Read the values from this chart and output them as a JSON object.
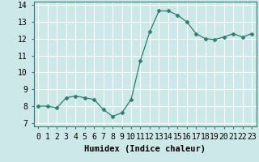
{
  "x": [
    0,
    1,
    2,
    3,
    4,
    5,
    6,
    7,
    8,
    9,
    10,
    11,
    12,
    13,
    14,
    15,
    16,
    17,
    18,
    19,
    20,
    21,
    22,
    23
  ],
  "y": [
    8.0,
    8.0,
    7.9,
    8.5,
    8.6,
    8.5,
    8.4,
    7.8,
    7.4,
    7.6,
    8.4,
    10.7,
    12.4,
    13.65,
    13.65,
    13.4,
    13.0,
    12.3,
    12.0,
    11.95,
    12.1,
    12.3,
    12.1,
    12.3
  ],
  "line_color": "#2e7d6e",
  "marker": "D",
  "marker_size": 2.5,
  "bg_color": "#cce8e8",
  "grid_color": "#ffffff",
  "xlabel": "Humidex (Indice chaleur)",
  "xlim": [
    -0.5,
    23.5
  ],
  "ylim": [
    6.8,
    14.2
  ],
  "yticks": [
    7,
    8,
    9,
    10,
    11,
    12,
    13,
    14
  ],
  "xtick_labels": [
    "0",
    "1",
    "2",
    "3",
    "4",
    "5",
    "6",
    "7",
    "8",
    "9",
    "10",
    "11",
    "12",
    "13",
    "14",
    "15",
    "16",
    "17",
    "18",
    "19",
    "20",
    "21",
    "22",
    "23"
  ],
  "xlabel_fontsize": 7.5,
  "tick_fontsize": 7
}
